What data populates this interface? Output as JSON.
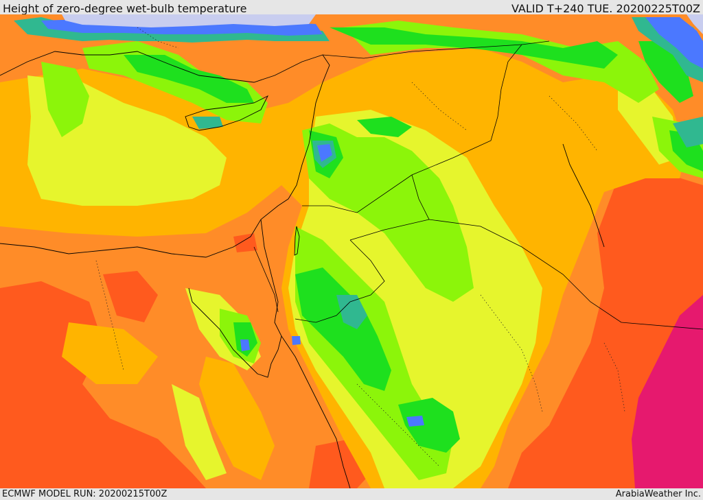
{
  "header": {
    "title": "Height of zero-degree wet-bulb temperature",
    "valid": "VALID T+240 TUE. 20200225T00Z"
  },
  "footer": {
    "model_run": "ECMWF MODEL RUN: 20200215T00Z",
    "credit": "ArabiaWeather Inc."
  },
  "palette": {
    "lavender": "#c8cdef",
    "blue": "#4b78ff",
    "teal": "#30b890",
    "dark_green": "#1ee01e",
    "green": "#8cf50a",
    "yellow": "#e6f52d",
    "amber": "#ffb400",
    "orange": "#ff8c28",
    "red_orange": "#ff5a1e",
    "magenta": "#e6196e"
  }
}
